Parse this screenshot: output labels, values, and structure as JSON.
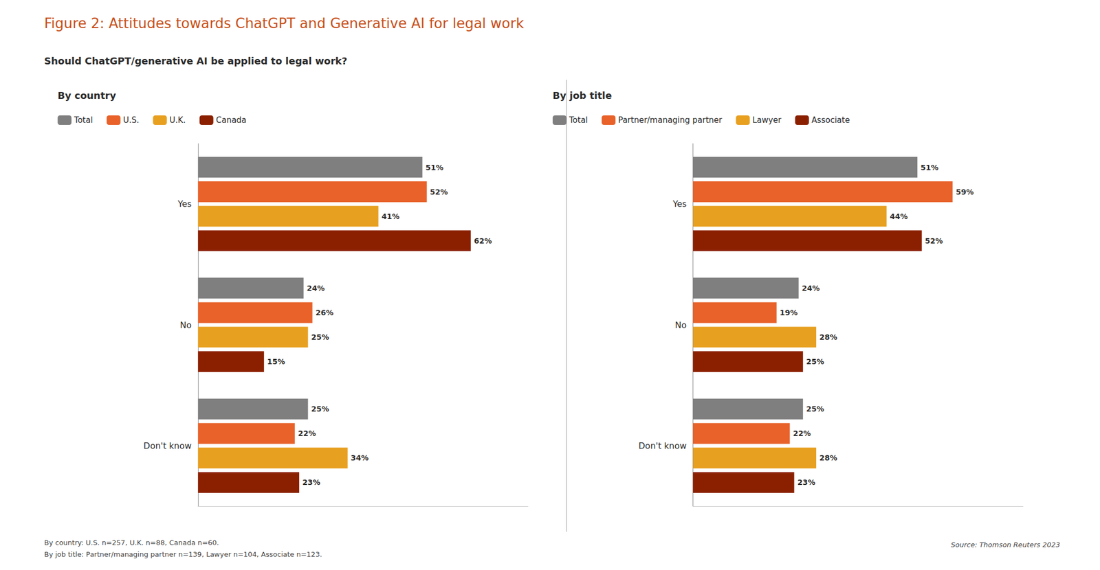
{
  "title": "Figure 2: Attitudes towards ChatGPT and Generative AI for legal work",
  "subtitle": "Should ChatGPT/generative AI be applied to legal work?",
  "annotations": [
    "By country: U.S. n=257, U.K. n=88, Canada n=60.",
    "By job title: Partner/managing partner n=139, Lawyer n=104, Associate n=123.",
    "Source: Thomson Reuters 2023"
  ],
  "chart_data": [
    {
      "type": "bar",
      "orientation": "horizontal",
      "title": "By country",
      "categories": [
        "Yes",
        "No",
        "Don't know"
      ],
      "series": [
        {
          "name": "Total",
          "color": "#7f7f7f",
          "values": [
            51,
            24,
            25
          ],
          "value_labels": [
            "51%",
            "24%",
            "25%"
          ]
        },
        {
          "name": "U.S.",
          "color": "#E8622A",
          "values": [
            52,
            26,
            22
          ],
          "value_labels": [
            "52%",
            "26%",
            "22%"
          ]
        },
        {
          "name": "U.K.",
          "color": "#E8A020",
          "values": [
            41,
            25,
            34
          ],
          "value_labels": [
            "41%",
            "25%",
            "34%"
          ]
        },
        {
          "name": "Canada",
          "color": "#8B2000",
          "values": [
            62,
            15,
            23
          ],
          "value_labels": [
            "62%",
            "15%",
            "23%"
          ]
        }
      ],
      "xlim": [
        0,
        75
      ],
      "tick_labels": "y",
      "grid": false,
      "legend": "top",
      "data_labels": true
    },
    {
      "type": "bar",
      "orientation": "horizontal",
      "title": "By job title",
      "categories": [
        "Yes",
        "No",
        "Don't know"
      ],
      "series": [
        {
          "name": "Total",
          "color": "#7f7f7f",
          "values": [
            51,
            24,
            25
          ],
          "value_labels": [
            "51%",
            "24%",
            "25%"
          ]
        },
        {
          "name": "Partner/managing partner",
          "color": "#E8622A",
          "values": [
            59,
            19,
            22
          ],
          "value_labels": [
            "59%",
            "19%",
            "22%"
          ]
        },
        {
          "name": "Lawyer",
          "color": "#E8A020",
          "values": [
            44,
            28,
            28
          ],
          "value_labels": [
            "44%",
            "28%",
            "28%"
          ]
        },
        {
          "name": "Associate",
          "color": "#8B2000",
          "values": [
            52,
            25,
            23
          ],
          "value_labels": [
            "52%",
            "25%",
            "23%"
          ]
        }
      ],
      "xlim": [
        0,
        75
      ],
      "tick_labels": "y",
      "grid": false,
      "legend": "top",
      "data_labels": true
    }
  ]
}
